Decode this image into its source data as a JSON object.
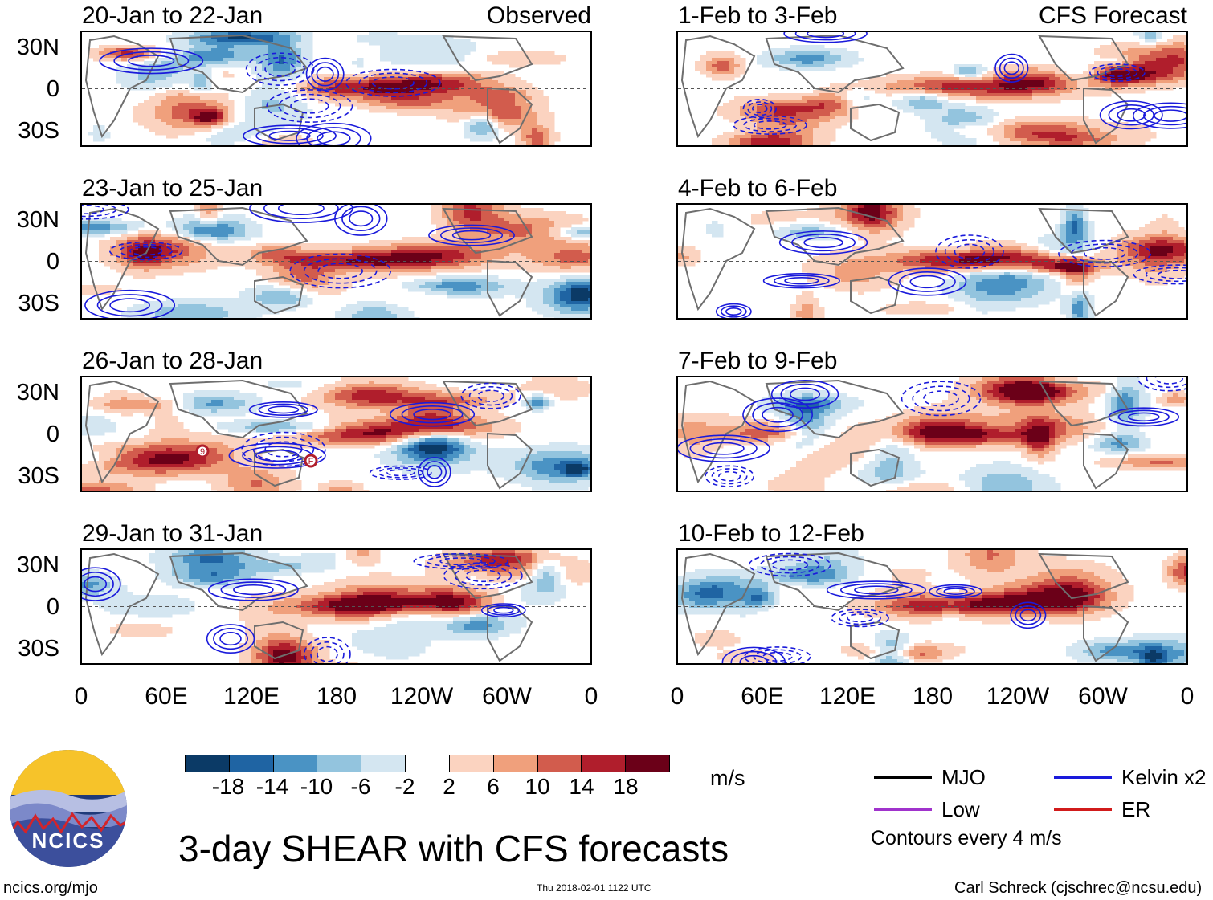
{
  "title": "3-day SHEAR with CFS forecasts",
  "labels": {
    "observed": "Observed",
    "forecast": "CFS Forecast"
  },
  "panels": {
    "observed": [
      "20-Jan to 22-Jan",
      "23-Jan to 25-Jan",
      "26-Jan to 28-Jan",
      "29-Jan to 31-Jan"
    ],
    "forecast": [
      "1-Feb to 3-Feb",
      "4-Feb to 6-Feb",
      "7-Feb to 9-Feb",
      "10-Feb to 12-Feb"
    ]
  },
  "lat_ticks": [
    "30N",
    "0",
    "30S"
  ],
  "lon_ticks": [
    "0",
    "60E",
    "120E",
    "180",
    "120W",
    "60W",
    "0"
  ],
  "storm_markers": [
    "9",
    "F"
  ],
  "colorbar": {
    "ticks": [
      "-18",
      "-14",
      "-10",
      "-6",
      "-2",
      "2",
      "6",
      "10",
      "14",
      "18"
    ],
    "colors": [
      "#0b3a66",
      "#1f64a3",
      "#4a93c4",
      "#93c4de",
      "#d4e6f1",
      "#ffffff",
      "#fbd3c0",
      "#f0a07c",
      "#d25c4d",
      "#b01e2c",
      "#6b0018"
    ],
    "units": "m/s"
  },
  "legend": {
    "items": [
      {
        "label": "MJO",
        "color": "#000000"
      },
      {
        "label": "Kelvin x2",
        "color": "#1a1adb"
      },
      {
        "label": "Low",
        "color": "#a033cc"
      },
      {
        "label": "ER",
        "color": "#d11b1b"
      }
    ],
    "note": "Contours every 4 m/s"
  },
  "footer": {
    "site": "ncics.org/mjo",
    "timestamp": "Thu 2018-02-01 1122 UTC",
    "credit": "Carl Schreck (cjschrec@ncsu.edu)",
    "logo_text": "NCICS"
  }
}
